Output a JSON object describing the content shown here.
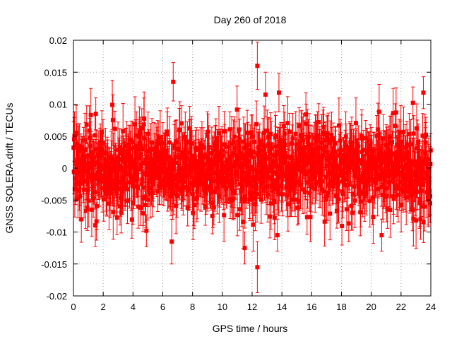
{
  "chart_data": {
    "type": "scatter",
    "title": "Day 260 of 2018",
    "xlabel": "GPS time / hours",
    "ylabel": "GNSS SOLERA-drift / TECUs",
    "xlim": [
      0,
      24
    ],
    "ylim": [
      -0.02,
      0.02
    ],
    "xticks": [
      0,
      2,
      4,
      6,
      8,
      10,
      12,
      14,
      16,
      18,
      20,
      22,
      24
    ],
    "xtick_labels": [
      "0",
      "2",
      "4",
      "6",
      "8",
      "10",
      "12",
      "14",
      "16",
      "18",
      "20",
      "22",
      "24"
    ],
    "yticks": [
      -0.02,
      -0.015,
      -0.01,
      -0.005,
      0,
      0.005,
      0.01,
      0.015,
      0.02
    ],
    "ytick_labels": [
      "-0.02",
      "-0.015",
      "-0.01",
      "-0.005",
      "0",
      "0.005",
      "0.01",
      "0.015",
      "0.02"
    ],
    "grid": true,
    "legend": "none",
    "series": [
      {
        "name": "SOLERA drift",
        "color": "#ff0000",
        "marker": "square",
        "error_bars": true,
        "typical_error": 0.0035,
        "noise_std": 0.0032,
        "n_points": 1200,
        "notable_points": [
          {
            "x": 6.7,
            "y": 0.0135,
            "err": 0.003
          },
          {
            "x": 12.35,
            "y": 0.016,
            "err": 0.0037
          },
          {
            "x": 12.35,
            "y": -0.0155,
            "err": 0.004
          },
          {
            "x": 13.8,
            "y": 0.0118,
            "err": 0.003
          },
          {
            "x": 11.5,
            "y": -0.0125,
            "err": 0.0025
          },
          {
            "x": 6.6,
            "y": -0.0115,
            "err": 0.0035
          },
          {
            "x": 12.9,
            "y": 0.0115,
            "err": 0.0035
          },
          {
            "x": 23.5,
            "y": 0.0118,
            "err": 0.0025
          },
          {
            "x": 20.7,
            "y": -0.0105,
            "err": 0.0025
          },
          {
            "x": 4.9,
            "y": -0.0098,
            "err": 0.0025
          },
          {
            "x": 13.7,
            "y": -0.0105,
            "err": 0.0025
          },
          {
            "x": 22.8,
            "y": 0.0102,
            "err": 0.0025
          },
          {
            "x": 1.5,
            "y": 0.0085,
            "err": 0.0025
          },
          {
            "x": 0.3,
            "y": -0.0048,
            "err": 0.003
          },
          {
            "x": 23.95,
            "y": -0.0055,
            "err": 0.003
          }
        ]
      }
    ]
  }
}
